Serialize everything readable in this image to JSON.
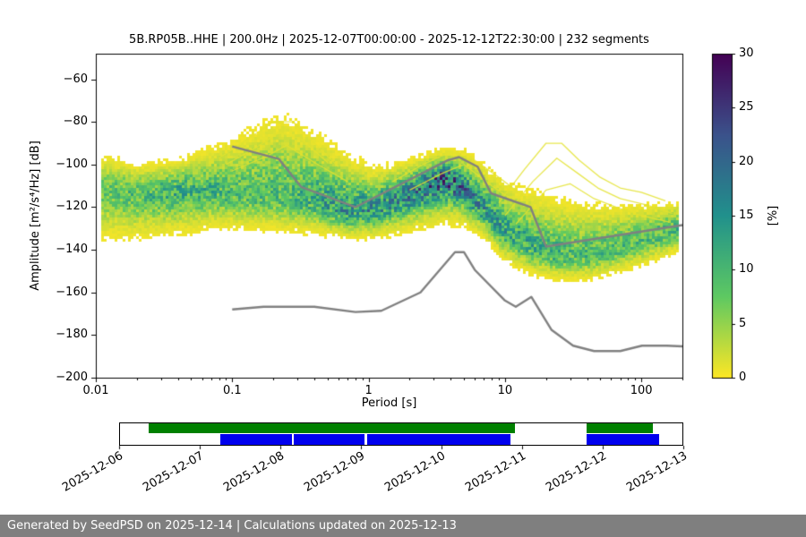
{
  "figure": {
    "footer": "Generated by SeedPSD on 2025-12-14 | Calculations updated on 2025-12-13"
  },
  "chart_data": {
    "type": "heatmap",
    "title": "5B.RP05B..HHE | 200.0Hz | 2025-12-07T00:00:00 - 2025-12-12T22:30:00 | 232 segments",
    "xlabel": "Period [s]",
    "ylabel": "Amplitude [m²/s⁴/Hz] [dB]",
    "x_scale": "log",
    "xlim": [
      0.01,
      200
    ],
    "ylim": [
      -200,
      -48
    ],
    "grid": false,
    "x_ticks": [
      {
        "label": "0.01",
        "value": 0.01
      },
      {
        "label": "0.1",
        "value": 0.1
      },
      {
        "label": "1",
        "value": 1
      },
      {
        "label": "10",
        "value": 10
      },
      {
        "label": "100",
        "value": 100
      }
    ],
    "y_ticks": [
      {
        "label": "−60",
        "value": -60
      },
      {
        "label": "−80",
        "value": -80
      },
      {
        "label": "−100",
        "value": -100
      },
      {
        "label": "−120",
        "value": -120
      },
      {
        "label": "−140",
        "value": -140
      },
      {
        "label": "−160",
        "value": -160
      },
      {
        "label": "−180",
        "value": -180
      },
      {
        "label": "−200",
        "value": -200
      }
    ],
    "colorbar": {
      "label": "[%]",
      "min": 0,
      "max": 30,
      "colormap": "viridis_reversed",
      "ticks": [
        {
          "label": "0",
          "value": 0
        },
        {
          "label": "5",
          "value": 5
        },
        {
          "label": "10",
          "value": 10
        },
        {
          "label": "15",
          "value": 15
        },
        {
          "label": "20",
          "value": 20
        },
        {
          "label": "25",
          "value": 25
        },
        {
          "label": "30",
          "value": 30
        }
      ]
    },
    "noise_models": {
      "color": "#808080",
      "high": [
        [
          0.1,
          -91.5
        ],
        [
          0.22,
          -97.4
        ],
        [
          0.32,
          -110.5
        ],
        [
          0.8,
          -120.0
        ],
        [
          3.8,
          -98.0
        ],
        [
          4.6,
          -96.5
        ],
        [
          6.3,
          -101.0
        ],
        [
          7.9,
          -113.5
        ],
        [
          15.4,
          -120.0
        ],
        [
          20.0,
          -138.5
        ],
        [
          200.0,
          -128.4
        ]
      ],
      "low": [
        [
          0.1,
          -168.0
        ],
        [
          0.17,
          -166.7
        ],
        [
          0.4,
          -166.7
        ],
        [
          0.8,
          -169.2
        ],
        [
          1.24,
          -168.6
        ],
        [
          2.4,
          -160.0
        ],
        [
          4.3,
          -141.1
        ],
        [
          5.0,
          -141.1
        ],
        [
          6.0,
          -149.4
        ],
        [
          10.0,
          -163.8
        ],
        [
          12.0,
          -166.7
        ],
        [
          15.6,
          -162.1
        ],
        [
          21.9,
          -177.5
        ],
        [
          31.6,
          -185.0
        ],
        [
          45.0,
          -187.5
        ],
        [
          70.0,
          -187.5
        ],
        [
          101.0,
          -185.0
        ],
        [
          154.0,
          -185.0
        ],
        [
          200.0,
          -185.3
        ]
      ]
    },
    "density_points": [
      {
        "period": 0.011,
        "mode_db": -112,
        "upper_db": -96,
        "lower_db": -134,
        "peak_percent": 7
      },
      {
        "period": 0.02,
        "mode_db": -114,
        "upper_db": -101,
        "lower_db": -133,
        "peak_percent": 9
      },
      {
        "period": 0.04,
        "mode_db": -112,
        "upper_db": -99,
        "lower_db": -131,
        "peak_percent": 11
      },
      {
        "period": 0.07,
        "mode_db": -112,
        "upper_db": -94,
        "lower_db": -129,
        "peak_percent": 10
      },
      {
        "period": 0.12,
        "mode_db": -114,
        "upper_db": -88,
        "lower_db": -129,
        "peak_percent": 9
      },
      {
        "period": 0.22,
        "mode_db": -115,
        "upper_db": -80,
        "lower_db": -130,
        "peak_percent": 9
      },
      {
        "period": 0.4,
        "mode_db": -117,
        "upper_db": -88,
        "lower_db": -131,
        "peak_percent": 11
      },
      {
        "period": 0.7,
        "mode_db": -122,
        "upper_db": -99,
        "lower_db": -133,
        "peak_percent": 14
      },
      {
        "period": 1.1,
        "mode_db": -121,
        "upper_db": -104,
        "lower_db": -133,
        "peak_percent": 14
      },
      {
        "period": 2.0,
        "mode_db": -114,
        "upper_db": -100,
        "lower_db": -129,
        "peak_percent": 16
      },
      {
        "period": 3.5,
        "mode_db": -106,
        "upper_db": -95,
        "lower_db": -124,
        "peak_percent": 21
      },
      {
        "period": 5.0,
        "mode_db": -111,
        "upper_db": -96,
        "lower_db": -126,
        "peak_percent": 17
      },
      {
        "period": 7.0,
        "mode_db": -121,
        "upper_db": -103,
        "lower_db": -133,
        "peak_percent": 14
      },
      {
        "period": 10.0,
        "mode_db": -131,
        "upper_db": -111,
        "lower_db": -144,
        "peak_percent": 12
      },
      {
        "period": 15.0,
        "mode_db": -138,
        "upper_db": -115,
        "lower_db": -150,
        "peak_percent": 11
      },
      {
        "period": 22.0,
        "mode_db": -142,
        "upper_db": -118,
        "lower_db": -153,
        "peak_percent": 10
      },
      {
        "period": 35.0,
        "mode_db": -143,
        "upper_db": -120,
        "lower_db": -154,
        "peak_percent": 9
      },
      {
        "period": 60.0,
        "mode_db": -140,
        "upper_db": -121,
        "lower_db": -151,
        "peak_percent": 9
      },
      {
        "period": 110.0,
        "mode_db": -135,
        "upper_db": -120,
        "lower_db": -146,
        "peak_percent": 9
      },
      {
        "period": 190.0,
        "mode_db": -130,
        "upper_db": -119,
        "lower_db": -140,
        "peak_percent": 10
      }
    ],
    "outlier_wisps": [
      [
        [
          0.08,
          -97
        ],
        [
          0.13,
          -88
        ],
        [
          0.2,
          -80
        ],
        [
          0.28,
          -80
        ],
        [
          0.4,
          -90
        ],
        [
          0.6,
          -101
        ]
      ],
      [
        [
          0.09,
          -100
        ],
        [
          0.15,
          -92
        ],
        [
          0.22,
          -85
        ],
        [
          0.32,
          -88
        ],
        [
          0.5,
          -99
        ]
      ],
      [
        [
          0.1,
          -103
        ],
        [
          0.18,
          -96
        ],
        [
          0.25,
          -91
        ],
        [
          0.4,
          -99
        ],
        [
          0.7,
          -108
        ]
      ],
      [
        [
          1.5,
          -108
        ],
        [
          2.5,
          -100
        ],
        [
          4,
          -94
        ],
        [
          6,
          -98
        ],
        [
          9,
          -106
        ],
        [
          12,
          -112
        ]
      ],
      [
        [
          2,
          -112
        ],
        [
          3.5,
          -104
        ],
        [
          5,
          -100
        ],
        [
          8,
          -110
        ],
        [
          11,
          -116
        ]
      ],
      [
        [
          9,
          -118
        ],
        [
          14,
          -102
        ],
        [
          20,
          -90
        ],
        [
          26,
          -90
        ],
        [
          35,
          -98
        ],
        [
          50,
          -106
        ],
        [
          70,
          -111
        ],
        [
          100,
          -113
        ],
        [
          150,
          -117
        ]
      ],
      [
        [
          10,
          -124
        ],
        [
          16,
          -108
        ],
        [
          24,
          -97
        ],
        [
          34,
          -104
        ],
        [
          48,
          -111
        ],
        [
          70,
          -116
        ],
        [
          110,
          -119
        ],
        [
          170,
          -123
        ]
      ],
      [
        [
          12,
          -128
        ],
        [
          20,
          -112
        ],
        [
          30,
          -109
        ],
        [
          45,
          -116
        ],
        [
          65,
          -120
        ],
        [
          100,
          -124
        ],
        [
          160,
          -127
        ]
      ]
    ]
  },
  "timeline": {
    "date_labels": [
      "2025-12-06",
      "2025-12-07",
      "2025-12-08",
      "2025-12-09",
      "2025-12-10",
      "2025-12-11",
      "2025-12-12",
      "2025-12-13"
    ],
    "availability_segments": [
      {
        "start": 0.051,
        "end": 0.702
      },
      {
        "start": 0.829,
        "end": 0.948
      }
    ],
    "coverage_segments": [
      {
        "start": 0.178,
        "end": 0.694
      },
      {
        "start": 0.829,
        "end": 0.959
      }
    ],
    "gap_lines": [
      0.305,
      0.435
    ],
    "colors": {
      "availability": "#008000",
      "coverage": "#0000ee"
    }
  }
}
